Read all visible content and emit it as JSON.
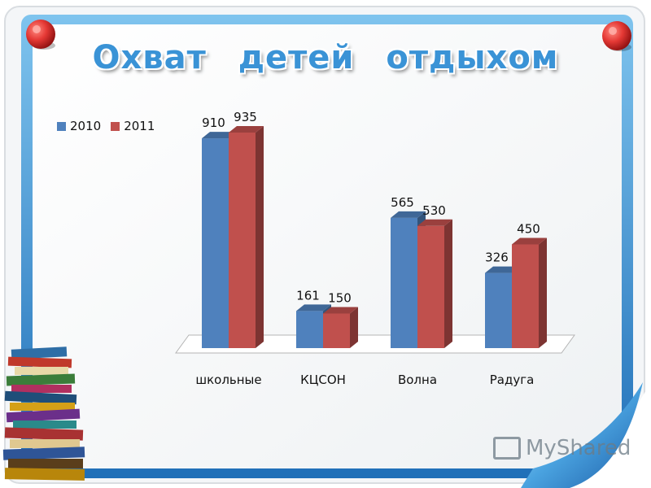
{
  "title": "Охват    детей   отдыхом",
  "watermark": "MyShared",
  "chart_data": {
    "type": "bar",
    "categories": [
      "школьные",
      "КЦСОН",
      "Волна",
      "Радуга"
    ],
    "series": [
      {
        "name": "2010",
        "values": [
          910,
          161,
          565,
          326
        ],
        "color": "#4f81bd"
      },
      {
        "name": "2011",
        "values": [
          935,
          150,
          530,
          450
        ],
        "color": "#c0504d"
      }
    ],
    "ylim": [
      0,
      1000
    ],
    "grid": false,
    "legend": "top-left",
    "style": "3d-clustered-column"
  }
}
